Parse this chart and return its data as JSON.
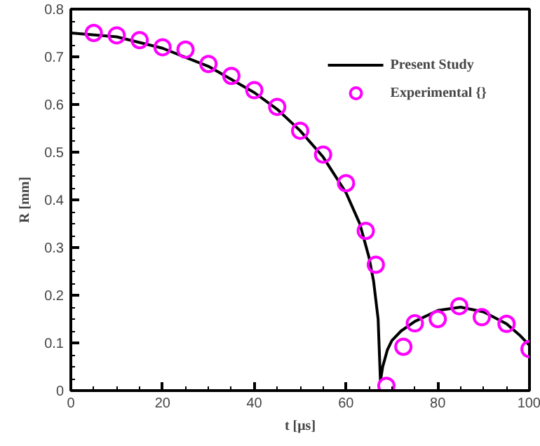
{
  "chart_data": {
    "type": "line",
    "xlabel": "t [μs]",
    "ylabel": "R [mm]",
    "xlim": [
      0,
      100
    ],
    "ylim": [
      0,
      0.8
    ],
    "xticks": [
      0,
      20,
      40,
      60,
      80,
      100
    ],
    "yticks": [
      0,
      0.1,
      0.2,
      0.3,
      0.4,
      0.5,
      0.6,
      0.7,
      0.8
    ],
    "grid": false,
    "legend": "top right",
    "series": [
      {
        "name": "Present Study",
        "color": "#000000",
        "line_style": "solid",
        "marker": "none",
        "x": [
          0,
          10,
          20,
          30,
          40,
          45,
          50,
          55,
          60,
          63,
          65,
          66,
          67,
          67.5,
          68,
          69,
          70,
          72,
          75,
          80,
          85,
          90,
          95,
          98,
          100
        ],
        "values": [
          0.75,
          0.742,
          0.718,
          0.68,
          0.625,
          0.59,
          0.545,
          0.49,
          0.415,
          0.35,
          0.28,
          0.23,
          0.15,
          0.02,
          0.05,
          0.085,
          0.105,
          0.125,
          0.145,
          0.168,
          0.175,
          0.165,
          0.14,
          0.115,
          0.095
        ]
      },
      {
        "name": "Experimental {}",
        "type": "scatter",
        "color": "#ff00ff",
        "marker": "circle",
        "x": [
          5,
          10,
          15,
          20,
          25,
          30,
          35,
          40,
          45,
          50,
          55,
          60,
          64.3,
          66.5,
          68.8,
          72.5,
          75,
          80,
          84.7,
          89.6,
          95,
          100
        ],
        "values": [
          0.75,
          0.745,
          0.735,
          0.72,
          0.715,
          0.685,
          0.66,
          0.63,
          0.595,
          0.545,
          0.495,
          0.435,
          0.335,
          0.264,
          0.01,
          0.092,
          0.141,
          0.15,
          0.177,
          0.154,
          0.14,
          0.087
        ]
      }
    ]
  }
}
